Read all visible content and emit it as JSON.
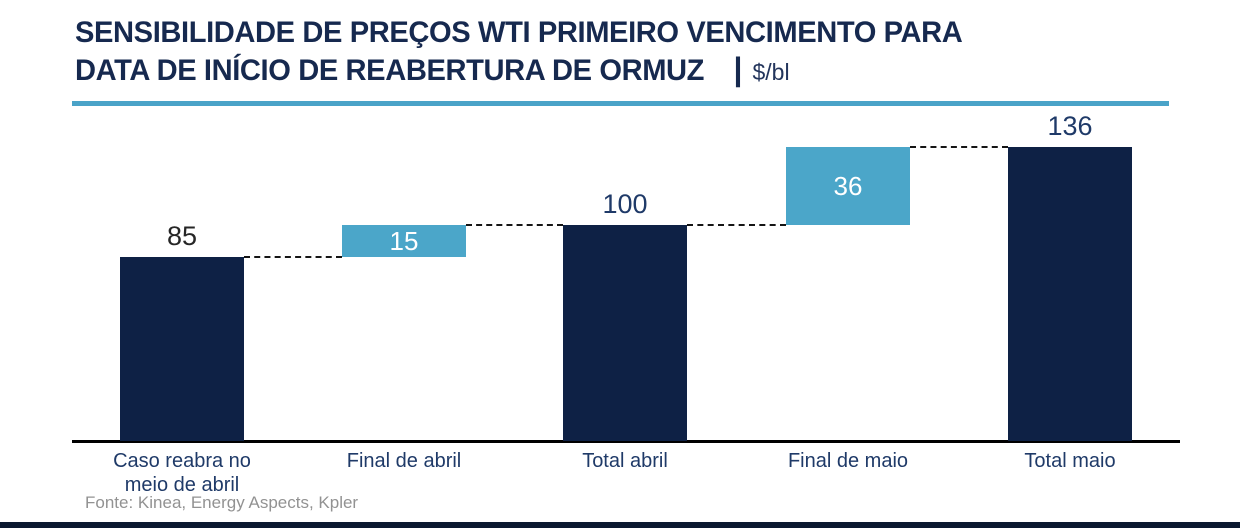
{
  "header": {
    "title_line1": "SENSIBILIDADE DE PREÇOS WTI PRIMEIRO VENCIMENTO PARA",
    "title_line2": "DATA DE INÍCIO DE REABERTURA DE ORMUZ",
    "title_separator": "|",
    "unit": "$/bl",
    "accent_color": "#4aa3c8",
    "title_color": "#16294f"
  },
  "chart_data": {
    "type": "bar",
    "subtype": "waterfall",
    "title": "SENSIBILIDADE DE PREÇOS WTI PRIMEIRO VENCIMENTO PARA DATA DE INÍCIO DE REABERTURA DE ORMUZ",
    "ylabel": "$/bl",
    "xlabel": "",
    "ylim": [
      0,
      136
    ],
    "grid": false,
    "legend": "none",
    "connector_style": "dashed",
    "categories": [
      "Caso reabra no meio de abril",
      "Final de abril",
      "Total abril",
      "Final de maio",
      "Total maio"
    ],
    "bars": [
      {
        "category": "Caso reabra no meio de abril",
        "base": 0,
        "value": 85,
        "display": "85",
        "kind": "total",
        "value_label_position": "above",
        "value_label_color": "#262626"
      },
      {
        "category": "Final de abril",
        "base": 85,
        "value": 15,
        "display": "15",
        "kind": "delta",
        "value_label_position": "inside",
        "value_label_color": "#ffffff"
      },
      {
        "category": "Total abril",
        "base": 0,
        "value": 100,
        "display": "100",
        "kind": "total",
        "value_label_position": "above",
        "value_label_color": "#1f3a68"
      },
      {
        "category": "Final de maio",
        "base": 100,
        "value": 36,
        "display": "36",
        "kind": "delta",
        "value_label_position": "inside",
        "value_label_color": "#ffffff"
      },
      {
        "category": "Total maio",
        "base": 0,
        "value": 136,
        "display": "136",
        "kind": "total",
        "value_label_position": "above",
        "value_label_color": "#1f3a68"
      }
    ],
    "colors": {
      "total_bar": "#0e2145",
      "delta_bar": "#4ba6c9",
      "connector": "#151515",
      "axis": "#000000"
    }
  },
  "footer": {
    "source": "Fonte: Kinea, Energy Aspects, Kpler"
  }
}
